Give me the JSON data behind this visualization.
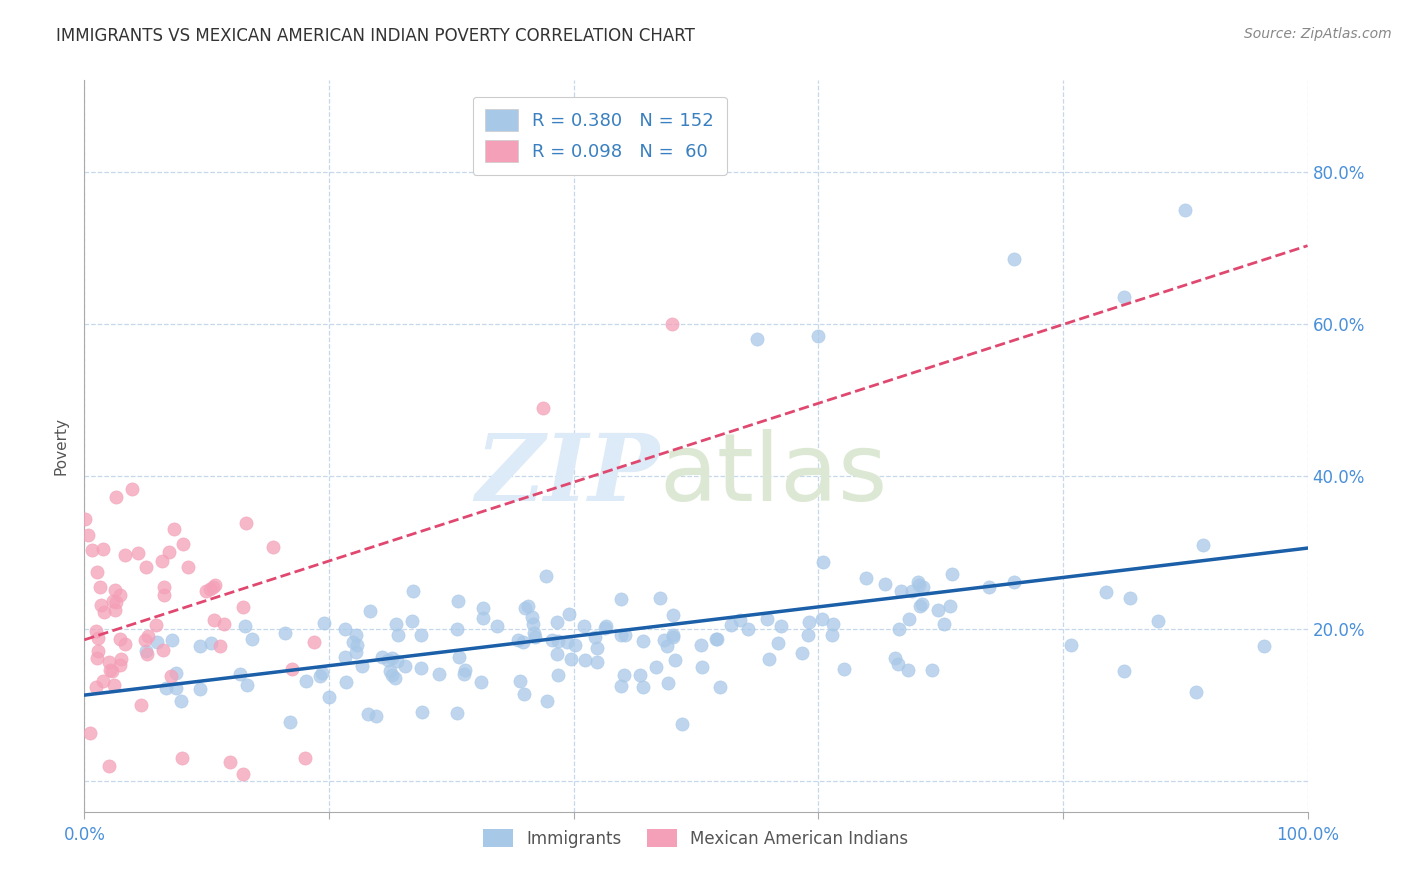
{
  "title": "IMMIGRANTS VS MEXICAN AMERICAN INDIAN POVERTY CORRELATION CHART",
  "source": "Source: ZipAtlas.com",
  "ylabel": "Poverty",
  "xlim": [
    0,
    1.0
  ],
  "ylim": [
    -0.04,
    0.92
  ],
  "immigrants_color": "#a8c8e8",
  "mexican_color": "#f4a0b8",
  "trend_immigrants_color": "#1a5fa8",
  "trend_mexican_color": "#e04870",
  "background_color": "#ffffff",
  "grid_color": "#c0d4e8",
  "immigrants_R": 0.38,
  "immigrants_N": 152,
  "mexican_R": 0.098,
  "mexican_N": 60,
  "xticks": [
    0.0,
    0.2,
    0.4,
    0.6,
    0.8,
    1.0
  ],
  "xtick_labels": [
    "0.0%",
    "",
    "",
    "",
    "",
    "100.0%"
  ],
  "ytick_vals": [
    0.0,
    0.2,
    0.4,
    0.6,
    0.8
  ],
  "right_ytick_labels": [
    "",
    "20.0%",
    "40.0%",
    "60.0%",
    "80.0%"
  ],
  "watermark_zip_color": "#dde8f4",
  "watermark_atlas_color": "#e0ecda",
  "legend_text_color": "#3a80c0",
  "source_color": "#888888",
  "title_color": "#333333"
}
